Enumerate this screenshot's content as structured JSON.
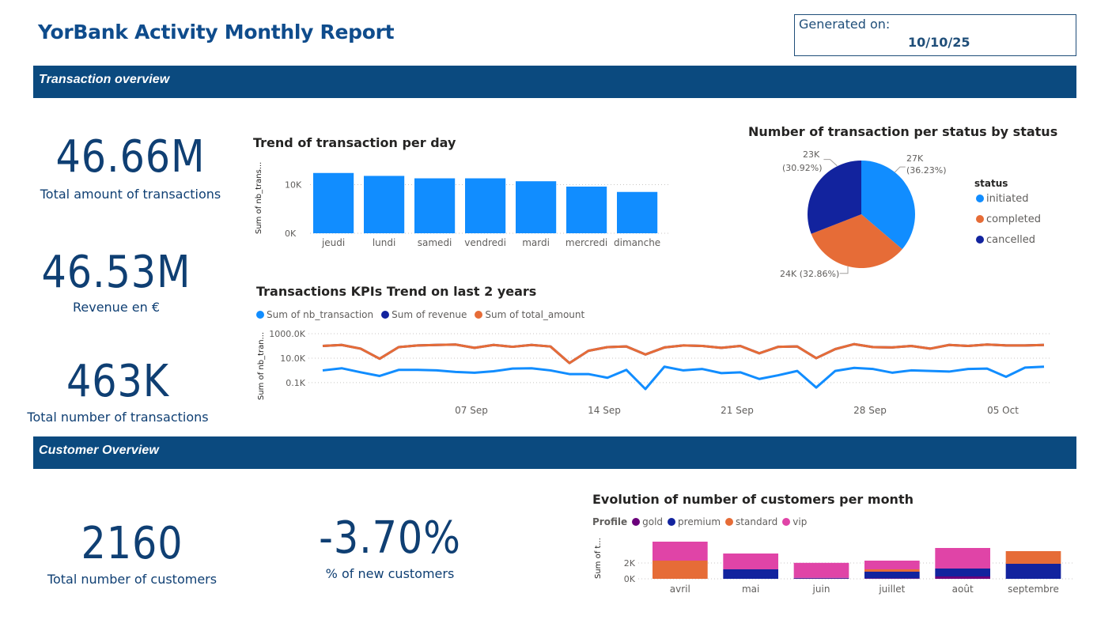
{
  "header": {
    "title": "YorBank Activity Monthly Report",
    "generated_label": "Generated on:",
    "generated_date": "10/10/25"
  },
  "sections": {
    "transactions": "Transaction overview",
    "customers": "Customer Overview"
  },
  "kpis": {
    "total_amount": {
      "value": "46.66M",
      "label": "Total amount of transactions"
    },
    "revenue": {
      "value": "46.53M",
      "label": "Revenue en €"
    },
    "nb_transactions": {
      "value": "463K",
      "label": "Total number of transactions"
    },
    "nb_customers": {
      "value": "2160",
      "label": "Total number of customers"
    },
    "pct_new_customers": {
      "value": "-3.70%",
      "label": "% of new customers"
    }
  },
  "colors": {
    "brand_dark": "#0b4a7f",
    "blue": "#118dff",
    "navy": "#12239e",
    "orange": "#e66c37",
    "purple": "#6b007b",
    "magenta": "#e044a7"
  },
  "chart_data": [
    {
      "id": "trend_per_day",
      "type": "bar",
      "title": "Trend of transaction per day",
      "ylabel": "Sum of nb_trans...",
      "categories": [
        "jeudi",
        "lundi",
        "samedi",
        "vendredi",
        "mardi",
        "mercredi",
        "dimanche"
      ],
      "values": [
        12400,
        11800,
        11300,
        11300,
        10700,
        9600,
        8500
      ],
      "yticks": [
        {
          "value": 0,
          "label": "0K"
        },
        {
          "value": 10000,
          "label": "10K"
        }
      ],
      "ylim": [
        0,
        13500
      ],
      "grid": true
    },
    {
      "id": "status_pie",
      "type": "pie",
      "title": "Number of transaction per status by status",
      "legend_title": "status",
      "slices": [
        {
          "name": "initiated",
          "value": 27000,
          "label": "27K",
          "pct": "(36.23%)"
        },
        {
          "name": "completed",
          "value": 24000,
          "label": "24K (32.86%)",
          "pct": ""
        },
        {
          "name": "cancelled",
          "value": 23000,
          "label": "23K",
          "pct": "(30.92%)"
        }
      ],
      "shares": [
        36.23,
        32.86,
        30.92
      ]
    },
    {
      "id": "kpi_trend",
      "type": "line",
      "title": "Transactions KPIs Trend on last 2 years",
      "ylabel": "Sum of nb_tran...",
      "log_scale": true,
      "yticks": [
        {
          "value": 100,
          "label": "0.1K"
        },
        {
          "value": 10000,
          "label": "10.0K"
        },
        {
          "value": 1000000,
          "label": "1000.0K"
        }
      ],
      "x_start": "2025-08-31",
      "xticks": [
        "07 Sep",
        "14 Sep",
        "21 Sep",
        "28 Sep",
        "05 Oct"
      ],
      "series": [
        {
          "name": "Sum of nb_transaction",
          "values": [
            1000,
            1500,
            700,
            350,
            1100,
            1100,
            1000,
            750,
            650,
            850,
            1400,
            1500,
            1000,
            500,
            500,
            250,
            1100,
            20,
            2000,
            1000,
            1300,
            600,
            700,
            200,
            400,
            900,
            40,
            900,
            1600,
            1300,
            650,
            1000,
            900,
            800,
            1300,
            1400,
            300,
            1700,
            2000
          ]
        },
        {
          "name": "Sum of revenue",
          "values": [
            100000,
            120000,
            60000,
            9000,
            80000,
            110000,
            120000,
            130000,
            70000,
            120000,
            85000,
            120000,
            90000,
            4000,
            40000,
            80000,
            90000,
            20000,
            75000,
            110000,
            100000,
            70000,
            100000,
            25000,
            85000,
            90000,
            10000,
            55000,
            140000,
            80000,
            75000,
            100000,
            60000,
            120000,
            100000,
            130000,
            110000,
            110000,
            120000
          ]
        },
        {
          "name": "Sum of total_amount",
          "values": [
            100000,
            120000,
            60000,
            9000,
            80000,
            110000,
            120000,
            130000,
            70000,
            120000,
            85000,
            120000,
            90000,
            4000,
            40000,
            80000,
            90000,
            20000,
            75000,
            110000,
            100000,
            70000,
            100000,
            25000,
            85000,
            90000,
            10000,
            55000,
            140000,
            80000,
            75000,
            100000,
            60000,
            120000,
            100000,
            130000,
            110000,
            110000,
            120000
          ]
        }
      ],
      "grid": true
    },
    {
      "id": "customers_per_month",
      "type": "bar",
      "stacked": true,
      "title": "Evolution of number of customers per month",
      "legend_title": "Profile",
      "ylabel": "Sum of t...",
      "categories": [
        "avril",
        "mai",
        "juin",
        "juillet",
        "août",
        "septembre"
      ],
      "series": [
        {
          "name": "gold",
          "values": [
            0,
            0,
            60,
            60,
            300,
            0
          ]
        },
        {
          "name": "premium",
          "values": [
            0,
            1200,
            60,
            840,
            1000,
            1900
          ]
        },
        {
          "name": "standard",
          "values": [
            2300,
            0,
            0,
            300,
            0,
            1600
          ]
        },
        {
          "name": "vip",
          "values": [
            2400,
            2000,
            1900,
            1100,
            2600,
            0
          ]
        }
      ],
      "yticks": [
        {
          "value": 0,
          "label": "0K"
        },
        {
          "value": 2000,
          "label": "2K"
        }
      ],
      "ylim": [
        0,
        5000
      ],
      "grid": true
    }
  ]
}
